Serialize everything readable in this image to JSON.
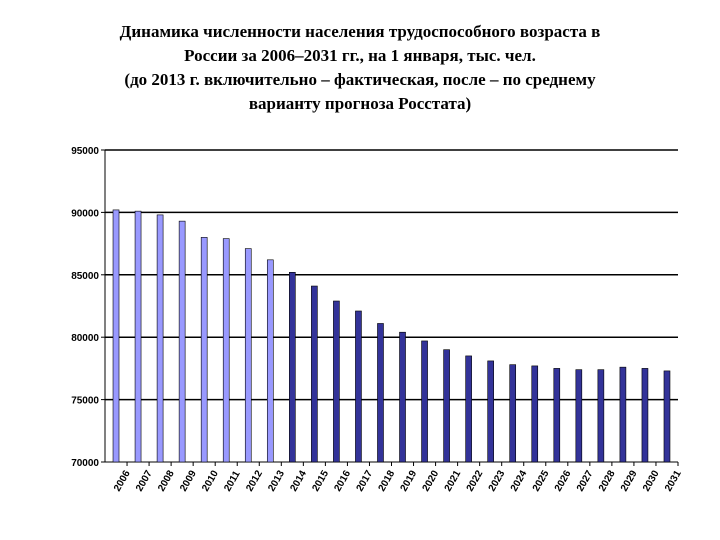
{
  "title": {
    "line1": "Динамика численности населения трудоспособного возраста в",
    "line2": "России за 2006–2031 гг., на 1 января, тыс. чел.",
    "line3": "(до 2013 г. включительно – фактическая, после – по среднему",
    "line4": "варианту прогноза Росстата)"
  },
  "chart_data": {
    "type": "bar",
    "categories": [
      "2006",
      "2007",
      "2008",
      "2009",
      "2010",
      "2011",
      "2012",
      "2013",
      "2014",
      "2015",
      "2016",
      "2017",
      "2018",
      "2019",
      "2020",
      "2021",
      "2022",
      "2023",
      "2024",
      "2025",
      "2026",
      "2027",
      "2028",
      "2029",
      "2030",
      "2031"
    ],
    "values": [
      90200,
      90100,
      89800,
      89300,
      88000,
      87900,
      87100,
      86200,
      85200,
      84100,
      82900,
      82100,
      81100,
      80400,
      79700,
      79000,
      78500,
      78100,
      77800,
      77700,
      77500,
      77400,
      77400,
      77600,
      77500,
      77300
    ],
    "ylim": [
      70000,
      95000
    ],
    "yticks": [
      "70000",
      "75000",
      "80000",
      "85000",
      "90000",
      "95000"
    ],
    "grid": true,
    "colors": {
      "actual": "#9999FF",
      "forecast": "#333399"
    },
    "actual_until": "2013"
  }
}
